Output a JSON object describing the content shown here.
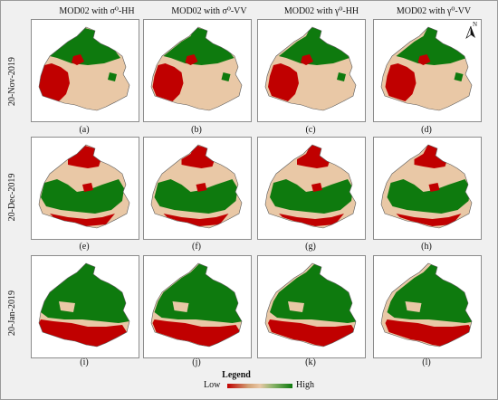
{
  "columns": [
    "MOD02 with σ⁰-HH",
    "MOD02 with σ⁰-VV",
    "MOD02 with γ⁰-HH",
    "MOD02 with γ⁰-VV"
  ],
  "rows": [
    "20-Nov-2019",
    "20-Dec-2019",
    "20-Jan-2019"
  ],
  "captions": [
    "(a)",
    "(b)",
    "(c)",
    "(d)",
    "(e)",
    "(f)",
    "(g)",
    "(h)",
    "(i)",
    "(j)",
    "(k)",
    "(l)"
  ],
  "north_label": "N",
  "legend": {
    "title": "Legend",
    "low": "Low",
    "high": "High"
  },
  "colors": {
    "low": "#c00000",
    "medium": "#e9c8a6",
    "high": "#0e7a0e",
    "background": "#f0f0f0",
    "outline": "#8c8c8c"
  }
}
